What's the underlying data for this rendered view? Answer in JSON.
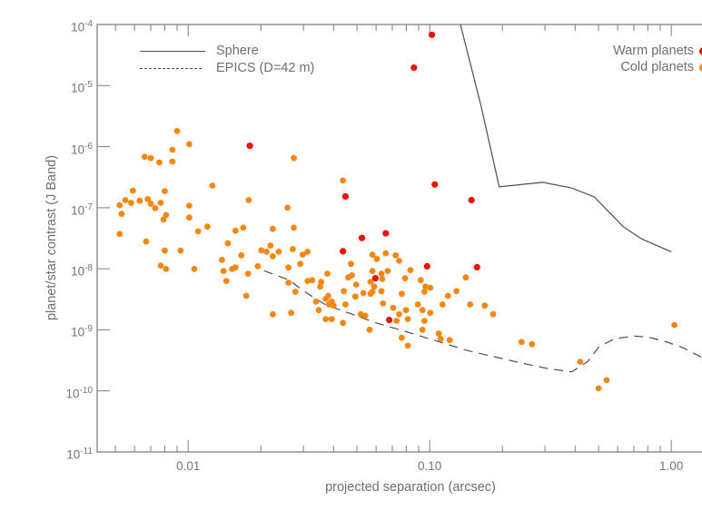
{
  "style": {
    "frame_color": "#8a8a8a",
    "text_color": "#6f6f6f",
    "curve_color": "#4d4d4d",
    "warm_color": "#ee1100",
    "cold_color": "#f8870f",
    "background": "#ffffff"
  },
  "chart_data": {
    "type": "scatter",
    "title": "",
    "xlabel": "projected separation (arcsec)",
    "ylabel": "planet/star contrast (J Band)",
    "grid": "off",
    "x_axis": {
      "scale": "log",
      "min": 0.0042,
      "max": 1.65,
      "major_ticks": [
        0.01,
        0.1,
        1.0
      ],
      "tick_labels": [
        "0.01",
        "0.10",
        "1.00"
      ]
    },
    "y_axis": {
      "scale": "log",
      "min": 1e-11,
      "max": 0.0001,
      "tick_base": "10",
      "tick_exponents": [
        "-4",
        "-5",
        "-6",
        "-7",
        "-8",
        "-9",
        "-10",
        "-11"
      ]
    },
    "line_legend": {
      "position": "top-left",
      "items": [
        {
          "label": "Sphere",
          "style": "solid"
        },
        {
          "label": "EPICS (D=42 m)",
          "style": "dashed"
        }
      ]
    },
    "point_legend": {
      "position": "top-right",
      "items": [
        {
          "label": "Warm planets",
          "color": "#ee1100"
        },
        {
          "label": "Cold planets",
          "color": "#f8870f"
        }
      ]
    },
    "series": [
      {
        "name": "Sphere",
        "type": "line",
        "style": "solid",
        "color": "#4d4d4d",
        "points": [
          [
            0.134,
            0.0001
          ],
          [
            0.163,
            4.7e-06
          ],
          [
            0.194,
            2.2e-07
          ],
          [
            0.294,
            2.6e-07
          ],
          [
            0.387,
            2.1e-07
          ],
          [
            0.48,
            1.5e-07
          ],
          [
            0.547,
            8.8e-08
          ],
          [
            0.632,
            4.9e-08
          ],
          [
            0.752,
            3.1e-08
          ],
          [
            0.894,
            2.3e-08
          ],
          [
            1.0,
            1.9e-08
          ]
        ]
      },
      {
        "name": "EPICS (D=42 m)",
        "type": "line",
        "style": "dashed",
        "color": "#4d4d4d",
        "points": [
          [
            0.0206,
            9.3e-09
          ],
          [
            0.026,
            6.6e-09
          ],
          [
            0.031,
            4e-09
          ],
          [
            0.0368,
            2.6e-09
          ],
          [
            0.046,
            1.9e-09
          ],
          [
            0.06,
            1.3e-09
          ],
          [
            0.08,
            9.3e-10
          ],
          [
            0.106,
            6.6e-10
          ],
          [
            0.146,
            4.5e-10
          ],
          [
            0.245,
            2.8e-10
          ],
          [
            0.312,
            2.3e-10
          ],
          [
            0.387,
            2.05e-10
          ],
          [
            0.45,
            3e-10
          ],
          [
            0.503,
            5.3e-10
          ],
          [
            0.582,
            7.1e-10
          ],
          [
            0.695,
            7.9e-10
          ],
          [
            0.8,
            7.6e-10
          ],
          [
            0.95,
            6.4e-10
          ],
          [
            1.13,
            5e-10
          ],
          [
            1.31,
            3.7e-10
          ],
          [
            1.52,
            2.7e-10
          ],
          [
            1.65,
            2.05e-10
          ]
        ]
      },
      {
        "name": "Cold planets",
        "type": "scatter",
        "color": "#f8870f",
        "marker_radius": 3.4,
        "points": [
          [
            0.0052,
            1.1e-07
          ],
          [
            0.0053,
            7.9e-08
          ],
          [
            0.0052,
            3.7e-08
          ],
          [
            0.0055,
            1.33e-07
          ],
          [
            0.0058,
            1.2e-07
          ],
          [
            0.0059,
            1.9e-07
          ],
          [
            0.0063,
            1.3e-07
          ],
          [
            0.0066,
            6.8e-07
          ],
          [
            0.0067,
            2.8e-08
          ],
          [
            0.0068,
            1.38e-07
          ],
          [
            0.007,
            6.5e-07
          ],
          [
            0.007,
            1.16e-07
          ],
          [
            0.0073,
            9.8e-08
          ],
          [
            0.0076,
            5.5e-07
          ],
          [
            0.0077,
            1.2e-07
          ],
          [
            0.0077,
            1.13e-08
          ],
          [
            0.0079,
            6.4e-08
          ],
          [
            0.008,
            1.87e-07
          ],
          [
            0.008,
            1.98e-08
          ],
          [
            0.0081,
            7.6e-08
          ],
          [
            0.0081,
            9.9e-09
          ],
          [
            0.0086,
            8.9e-07
          ],
          [
            0.0086,
            5.7e-07
          ],
          [
            0.009,
            1.8e-06
          ],
          [
            0.0093,
            1.98e-08
          ],
          [
            0.0101,
            1.1e-06
          ],
          [
            0.0101,
            1.08e-07
          ],
          [
            0.0101,
            6.9e-08
          ],
          [
            0.0106,
            9.9e-09
          ],
          [
            0.011,
            4.1e-08
          ],
          [
            0.012,
            4.9e-08
          ],
          [
            0.0126,
            2.3e-07
          ],
          [
            0.0138,
            1.4e-08
          ],
          [
            0.014,
            9.2e-09
          ],
          [
            0.0144,
            6.3e-09
          ],
          [
            0.0146,
            2.6e-08
          ],
          [
            0.0152,
            9.9e-09
          ],
          [
            0.0157,
            1.05e-08
          ],
          [
            0.0157,
            4.2e-08
          ],
          [
            0.0166,
            1.66e-08
          ],
          [
            0.0169,
            4.7e-08
          ],
          [
            0.0174,
            3.6e-09
          ],
          [
            0.0177,
            8.3e-09
          ],
          [
            0.0178,
            1.33e-07
          ],
          [
            0.0194,
            1.1e-08
          ],
          [
            0.0201,
            2e-08
          ],
          [
            0.0211,
            1.9e-08
          ],
          [
            0.0219,
            2.4e-08
          ],
          [
            0.0224,
            4.5e-08
          ],
          [
            0.0224,
            1.6e-08
          ],
          [
            0.0224,
            1.8e-09
          ],
          [
            0.0237,
            1.9e-08
          ],
          [
            0.0258,
            1e-07
          ],
          [
            0.026,
            1.05e-08
          ],
          [
            0.026,
            5.9e-09
          ],
          [
            0.0267,
            1.9e-09
          ],
          [
            0.0271,
            2.1e-08
          ],
          [
            0.0274,
            6.5e-07
          ],
          [
            0.0274,
            4.7e-08
          ],
          [
            0.0278,
            4.2e-09
          ],
          [
            0.0291,
            1.2e-08
          ],
          [
            0.0298,
            1.7e-08
          ],
          [
            0.0312,
            1.9e-08
          ],
          [
            0.0312,
            6.3e-09
          ],
          [
            0.0326,
            6.5e-09
          ],
          [
            0.0338,
            2.9e-09
          ],
          [
            0.0347,
            2.1e-09
          ],
          [
            0.0352,
            5.1e-09
          ],
          [
            0.0355,
            6.1e-09
          ],
          [
            0.0371,
            3.2e-09
          ],
          [
            0.0371,
            1.5e-09
          ],
          [
            0.0377,
            8.3e-09
          ],
          [
            0.038,
            3.6e-09
          ],
          [
            0.0383,
            2.6e-09
          ],
          [
            0.0393,
            2.9e-09
          ],
          [
            0.0393,
            1.5e-09
          ],
          [
            0.04,
            2.5e-09
          ],
          [
            0.0437,
            2.8e-07
          ],
          [
            0.0437,
            1.3e-09
          ],
          [
            0.0441,
            4.3e-09
          ],
          [
            0.0448,
            2.6e-09
          ],
          [
            0.046,
            7.2e-09
          ],
          [
            0.0472,
            1.2e-08
          ],
          [
            0.0476,
            7.8e-09
          ],
          [
            0.0492,
            3.5e-09
          ],
          [
            0.0496,
            5.5e-09
          ],
          [
            0.0518,
            1.8e-09
          ],
          [
            0.0531,
            4e-09
          ],
          [
            0.0541,
            1.7e-09
          ],
          [
            0.0564,
            1e-09
          ],
          [
            0.0569,
            6.1e-09
          ],
          [
            0.0569,
            3.9e-09
          ],
          [
            0.0579,
            1.7e-08
          ],
          [
            0.0579,
            9.2e-09
          ],
          [
            0.0579,
            4.2e-09
          ],
          [
            0.0589,
            5.1e-09
          ],
          [
            0.0604,
            1.45e-08
          ],
          [
            0.0631,
            8.3e-09
          ],
          [
            0.0631,
            4.3e-09
          ],
          [
            0.0636,
            6.8e-09
          ],
          [
            0.0641,
            2.7e-09
          ],
          [
            0.0658,
            1.8e-08
          ],
          [
            0.067,
            9.2e-09
          ],
          [
            0.0705,
            2.3e-09
          ],
          [
            0.0723,
            1.66e-08
          ],
          [
            0.0729,
            1.4e-09
          ],
          [
            0.0747,
            1.35e-08
          ],
          [
            0.0747,
            1.8e-09
          ],
          [
            0.0766,
            3.9e-09
          ],
          [
            0.0766,
            7.4e-10
          ],
          [
            0.079,
            7e-09
          ],
          [
            0.0797,
            2.1e-09
          ],
          [
            0.0811,
            1.5e-09
          ],
          [
            0.0811,
            5.5e-10
          ],
          [
            0.0832,
            9.5e-09
          ],
          [
            0.0894,
            2.6e-09
          ],
          [
            0.0918,
            6.5e-09
          ],
          [
            0.0933,
            2.1e-09
          ],
          [
            0.0933,
            1e-09
          ],
          [
            0.0951,
            4.2e-09
          ],
          [
            0.0951,
            1.4e-09
          ],
          [
            0.096,
            5.1e-09
          ],
          [
            0.1005,
            4.9e-09
          ],
          [
            0.1005,
            1.9e-09
          ],
          [
            0.109,
            8.7e-10
          ],
          [
            0.111,
            7.1e-10
          ],
          [
            0.113,
            2.6e-09
          ],
          [
            0.119,
            3.6e-09
          ],
          [
            0.121,
            6.8e-10
          ],
          [
            0.129,
            4.3e-09
          ],
          [
            0.141,
            7.2e-09
          ],
          [
            0.147,
            2.6e-09
          ],
          [
            0.169,
            2.5e-09
          ],
          [
            0.183,
            1.8e-09
          ],
          [
            0.24,
            6.3e-10
          ],
          [
            0.265,
            5.8e-10
          ],
          [
            0.42,
            3e-10
          ],
          [
            0.5,
            1.1e-10
          ],
          [
            0.54,
            1.5e-10
          ],
          [
            1.03,
            1.2e-09
          ]
        ]
      },
      {
        "name": "Warm planets",
        "type": "scatter",
        "color": "#ee1100",
        "marker_radius": 3.6,
        "points": [
          [
            0.102,
            6.8e-05
          ],
          [
            0.086,
            1.96e-05
          ],
          [
            0.018,
            1.03e-06
          ],
          [
            0.0448,
            1.53e-07
          ],
          [
            0.105,
            2.4e-07
          ],
          [
            0.149,
            1.33e-07
          ],
          [
            0.0524,
            3.2e-08
          ],
          [
            0.0658,
            3.8e-08
          ],
          [
            0.0437,
            1.93e-08
          ],
          [
            0.0975,
            1.1e-08
          ],
          [
            0.157,
            1.06e-08
          ],
          [
            0.0596,
            7e-09
          ],
          [
            0.068,
            1.45e-09
          ]
        ]
      }
    ]
  }
}
